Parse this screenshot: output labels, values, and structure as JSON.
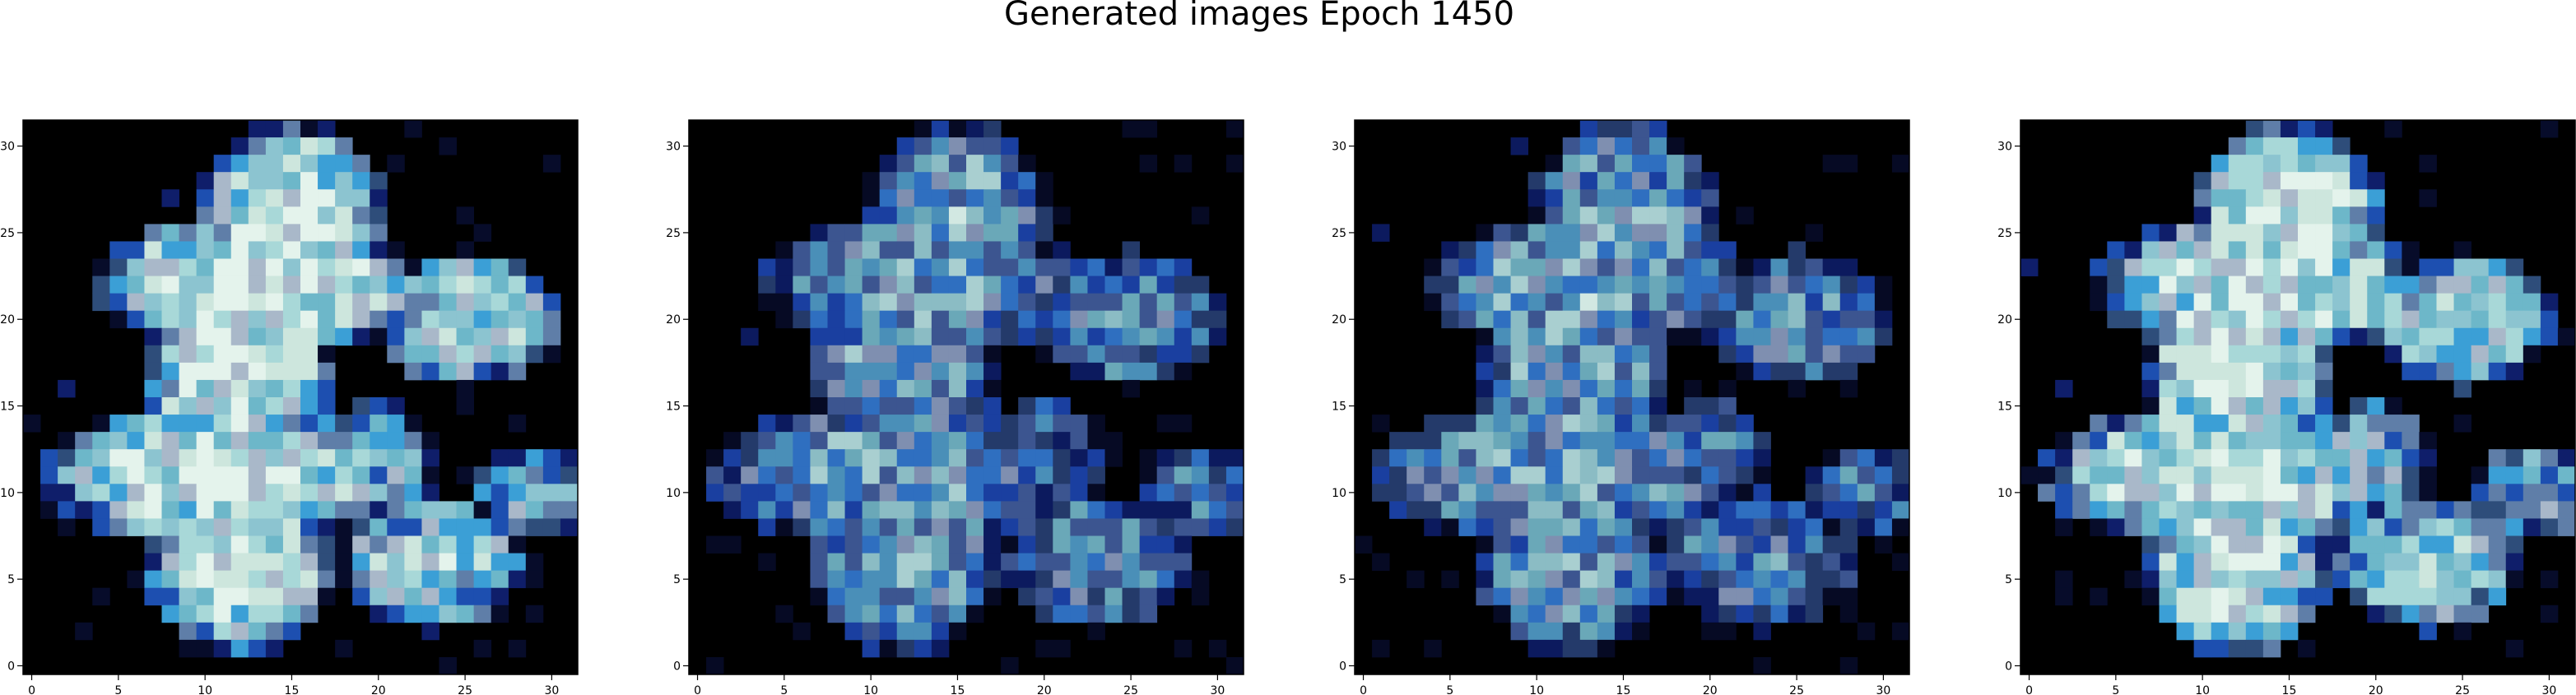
{
  "chart_data": {
    "type": "heatmap",
    "title": "Generated images Epoch 1450",
    "grid": false,
    "panels": [
      {
        "name": "",
        "xlim": [
          -0.5,
          31.5
        ],
        "ylim": [
          31.5,
          -0.5
        ],
        "xticks": [
          0,
          5,
          10,
          15,
          20,
          25,
          30
        ],
        "yticks": [
          0,
          5,
          10,
          15,
          20,
          25,
          30
        ],
        "background_color": "#000000",
        "palette": [
          "#000000",
          "#070c2a",
          "#0f1e6a",
          "#1d4fb0",
          "#3b9fd6",
          "#6db7c9",
          "#8cc4d0",
          "#a8d8d8",
          "#cde6dd",
          "#e4f3ec",
          "#a9b8c9",
          "#5f7ea8",
          "#2e4d7a"
        ]
      },
      {
        "name": "",
        "xlim": [
          -0.5,
          31.5
        ],
        "ylim": [
          31.5,
          -0.5
        ],
        "xticks": [
          0,
          5,
          10,
          15,
          20,
          25,
          30
        ],
        "yticks": [
          0,
          5,
          10,
          15,
          20,
          25,
          30
        ],
        "background_color": "#000000",
        "palette": [
          "#000000",
          "#060a24",
          "#0c1a5e",
          "#1a3fa0",
          "#2f6fc0",
          "#4a8fb8",
          "#6aa8b8",
          "#8bbcc4",
          "#a9cfd0",
          "#d2e8e2",
          "#7f8fb0",
          "#3c5590",
          "#243a6a"
        ]
      },
      {
        "name": "",
        "xlim": [
          -0.5,
          31.5
        ],
        "ylim": [
          31.5,
          -0.5
        ],
        "xticks": [
          0,
          5,
          10,
          15,
          20,
          25,
          30
        ],
        "yticks": [
          0,
          5,
          10,
          15,
          20,
          25,
          30
        ],
        "background_color": "#000000",
        "palette": [
          "#000000",
          "#060a24",
          "#0c1a5e",
          "#1a3fa0",
          "#2f6fc0",
          "#4a8fb8",
          "#6aa8b8",
          "#8bbcc4",
          "#a9cfd0",
          "#d2e8e2",
          "#7f8fb0",
          "#3c5590",
          "#243a6a"
        ]
      },
      {
        "name": "",
        "xlim": [
          -0.5,
          31.5
        ],
        "ylim": [
          31.5,
          -0.5
        ],
        "xticks": [
          0,
          5,
          10,
          15,
          20,
          25,
          30
        ],
        "yticks": [
          0,
          5,
          10,
          15,
          20,
          25,
          30
        ],
        "background_color": "#000000",
        "palette": [
          "#000000",
          "#070c2a",
          "#0f1e6a",
          "#1d4fb0",
          "#3b9fd6",
          "#6db7c9",
          "#8cc4d0",
          "#a8d8d8",
          "#cde6dd",
          "#e4f3ec",
          "#a9b8c9",
          "#5f7ea8",
          "#2e4d7a"
        ]
      }
    ]
  }
}
